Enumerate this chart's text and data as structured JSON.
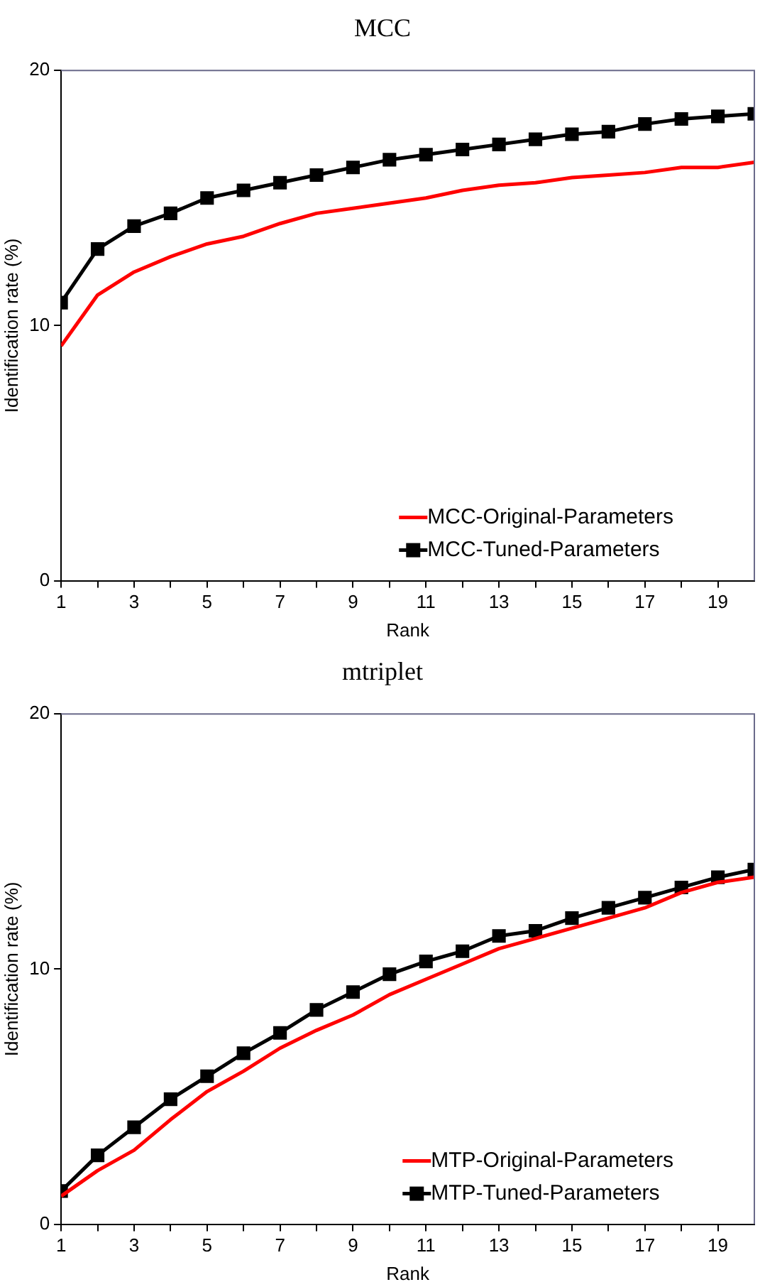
{
  "chart_data": [
    {
      "type": "line",
      "title": "MCC",
      "xlabel": "Rank",
      "ylabel": "Identification rate (%)",
      "x": [
        1,
        2,
        3,
        4,
        5,
        6,
        7,
        8,
        9,
        10,
        11,
        12,
        13,
        14,
        15,
        16,
        17,
        18,
        19,
        20
      ],
      "xlim": [
        1,
        20
      ],
      "xticks": [
        1,
        {
          "value": 2,
          "label": null
        },
        3,
        {
          "value": 4,
          "label": null
        },
        5,
        {
          "value": 6,
          "label": null
        },
        7,
        {
          "value": 8,
          "label": null
        },
        9,
        {
          "value": 10,
          "label": null
        },
        11,
        {
          "value": 12,
          "label": null
        },
        13,
        {
          "value": 14,
          "label": null
        },
        15,
        {
          "value": 16,
          "label": null
        },
        17,
        {
          "value": 18,
          "label": null
        },
        19
      ],
      "ylim": [
        0,
        20
      ],
      "yticks": [
        0,
        10,
        20
      ],
      "grid": false,
      "legend": "bottom right",
      "line_style": "solid",
      "series": [
        {
          "name": "MCC-Original-Parameters",
          "color": "#ff0000",
          "marker": "none",
          "values": [
            9.2,
            11.2,
            12.1,
            12.7,
            13.2,
            13.5,
            14.0,
            14.4,
            14.6,
            14.8,
            15.0,
            15.3,
            15.5,
            15.6,
            15.8,
            15.9,
            16.0,
            16.2,
            16.2,
            16.4
          ]
        },
        {
          "name": "MCC-Tuned-Parameters",
          "color": "#000000",
          "marker": "square",
          "values": [
            10.9,
            13.0,
            13.9,
            14.4,
            15.0,
            15.3,
            15.6,
            15.9,
            16.2,
            16.5,
            16.7,
            16.9,
            17.1,
            17.3,
            17.5,
            17.6,
            17.9,
            18.1,
            18.2,
            18.3
          ]
        }
      ]
    },
    {
      "type": "line",
      "title": "mtriplet",
      "xlabel": "Rank",
      "ylabel": "Identification rate (%)",
      "x": [
        1,
        2,
        3,
        4,
        5,
        6,
        7,
        8,
        9,
        10,
        11,
        12,
        13,
        14,
        15,
        16,
        17,
        18,
        19,
        20
      ],
      "xlim": [
        1,
        20
      ],
      "xticks": [
        1,
        {
          "value": 2,
          "label": null
        },
        3,
        {
          "value": 4,
          "label": null
        },
        5,
        {
          "value": 6,
          "label": null
        },
        7,
        {
          "value": 8,
          "label": null
        },
        9,
        {
          "value": 10,
          "label": null
        },
        11,
        {
          "value": 12,
          "label": null
        },
        13,
        {
          "value": 14,
          "label": null
        },
        15,
        {
          "value": 16,
          "label": null
        },
        17,
        {
          "value": 18,
          "label": null
        },
        19
      ],
      "ylim": [
        0,
        20
      ],
      "yticks": [
        0,
        10,
        20
      ],
      "grid": false,
      "legend": "bottom right",
      "line_style": "solid",
      "series": [
        {
          "name": "MTP-Original-Parameters",
          "color": "#ff0000",
          "marker": "none",
          "values": [
            1.1,
            2.1,
            2.9,
            4.1,
            5.2,
            6.0,
            6.9,
            7.6,
            8.2,
            9.0,
            9.6,
            10.2,
            10.8,
            11.2,
            11.6,
            12.0,
            12.4,
            13.0,
            13.4,
            13.6
          ]
        },
        {
          "name": "MTP-Tuned-Parameters",
          "color": "#000000",
          "marker": "square",
          "values": [
            1.3,
            2.7,
            3.8,
            4.9,
            5.8,
            6.7,
            7.5,
            8.4,
            9.1,
            9.8,
            10.3,
            10.7,
            11.3,
            11.5,
            12.0,
            12.4,
            12.8,
            13.2,
            13.6,
            13.9
          ]
        }
      ]
    }
  ]
}
